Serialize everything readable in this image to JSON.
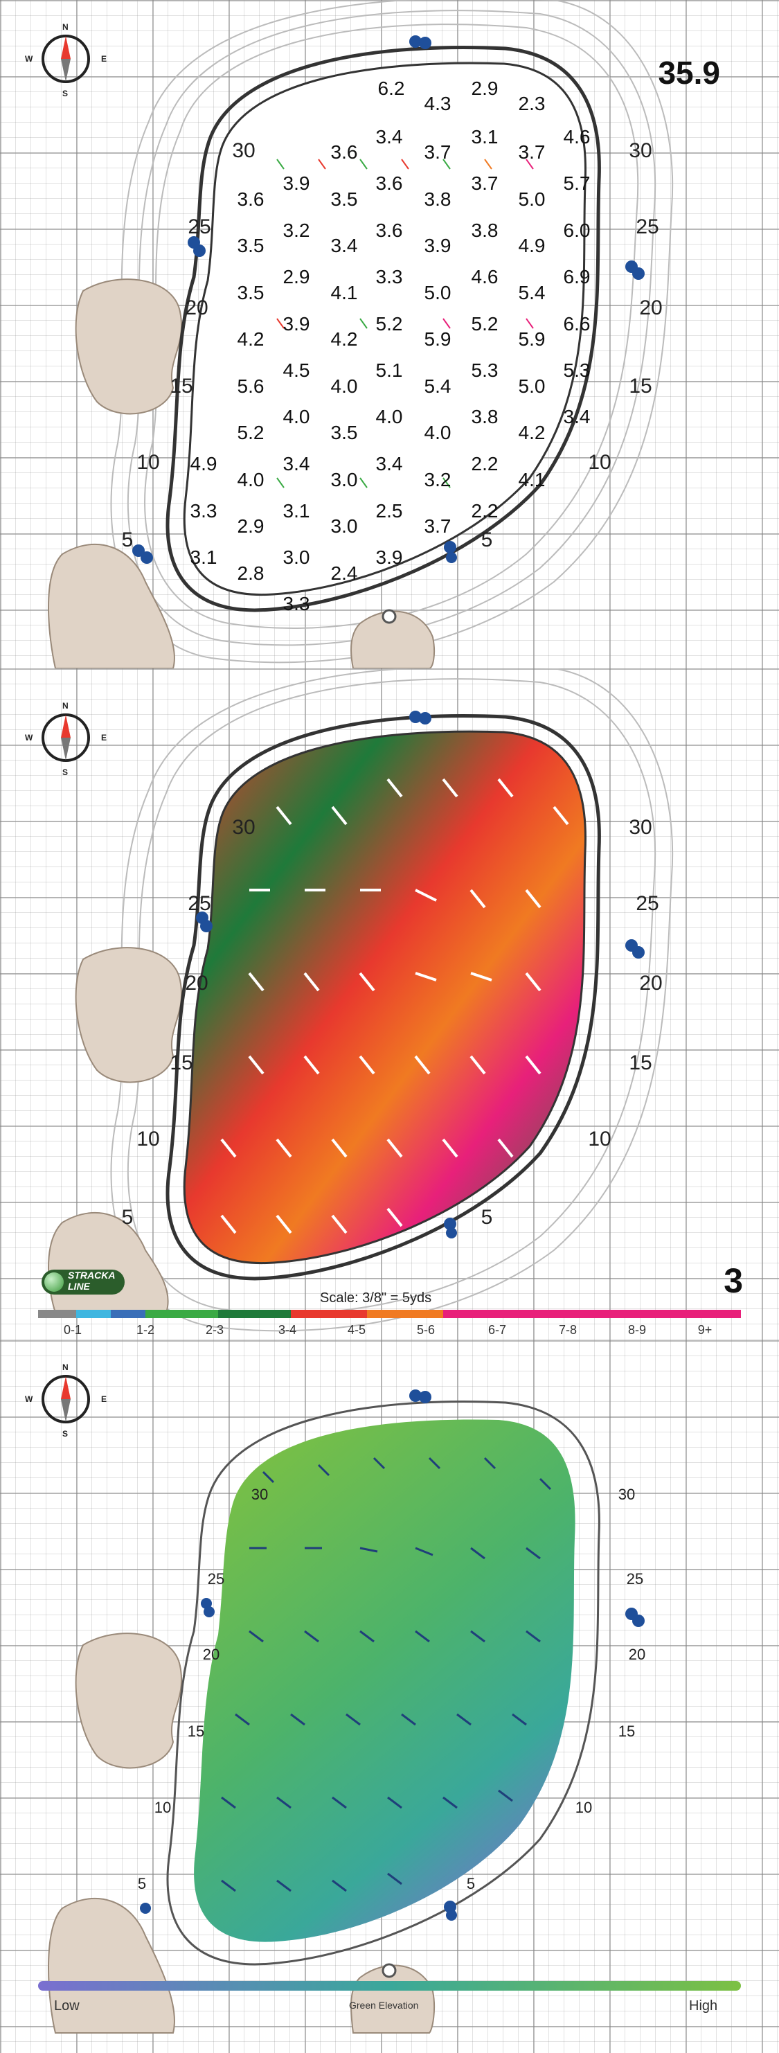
{
  "compass": {
    "n": "N",
    "s": "S",
    "e": "E",
    "w": "W",
    "icon": "compass-rose-icon"
  },
  "panel1": {
    "hole_value": "35.9",
    "distance_markers": [
      "30",
      "25",
      "20",
      "15",
      "10",
      "5"
    ],
    "distance_markers_right": [
      "30",
      "25",
      "20",
      "15",
      "10",
      "5"
    ],
    "slope_values": [
      [
        "6.2",
        "4.3",
        "2.9",
        "2.3"
      ],
      [
        "3.4",
        "3.1",
        "4.6"
      ],
      [
        "3.6",
        "3.7",
        "3.7"
      ],
      [
        "3.9",
        "3.6",
        "3.7",
        "5.7"
      ],
      [
        "3.6",
        "3.5",
        "3.8",
        "5.0"
      ],
      [
        "3.2",
        "3.6",
        "3.8",
        "6.0"
      ],
      [
        "3.5",
        "3.4",
        "3.9",
        "4.9"
      ],
      [
        "2.9",
        "3.3",
        "4.6",
        "6.9"
      ],
      [
        "3.5",
        "4.1",
        "5.0",
        "5.4"
      ],
      [
        "3.9",
        "5.2",
        "5.2",
        "6.6"
      ],
      [
        "4.2",
        "4.2",
        "5.9",
        "5.9"
      ],
      [
        "4.5",
        "5.1",
        "5.3",
        "5.3"
      ],
      [
        "5.6",
        "4.0",
        "5.4",
        "5.0"
      ],
      [
        "4.0",
        "4.0",
        "3.8",
        "3.4"
      ],
      [
        "5.2",
        "3.5",
        "4.0",
        "4.2"
      ],
      [
        "4.9",
        "3.4",
        "3.4",
        "2.2"
      ],
      [
        "4.0",
        "3.0",
        "3.2",
        "4.1"
      ],
      [
        "3.3",
        "3.1",
        "2.5",
        "2.2"
      ],
      [
        "2.9",
        "3.0",
        "3.7"
      ],
      [
        "3.1",
        "3.0",
        "3.9"
      ],
      [
        "2.8",
        "2.4"
      ],
      [
        "3.3"
      ]
    ]
  },
  "panel2": {
    "hole_number": "3",
    "scale_text": "Scale: 3/8\" = 5yds",
    "logo_text_1": "STRACKA",
    "logo_text_2": "LINE",
    "distance_markers": [
      "30",
      "25",
      "20",
      "15",
      "10",
      "5"
    ],
    "distance_markers_right": [
      "30",
      "25",
      "20",
      "15",
      "10",
      "5"
    ],
    "legend": [
      {
        "label": "0-1",
        "color": "#888888"
      },
      {
        "label": "1-2",
        "color": "#3fb6e0"
      },
      {
        "label": "2-3",
        "color": "#3aaa44"
      },
      {
        "label": "3-4",
        "color": "#1f7a3a"
      },
      {
        "label": "4-5",
        "color": "#e8392e"
      },
      {
        "label": "5-6",
        "color": "#f07a22"
      },
      {
        "label": "6-7",
        "color": "#e8207a"
      },
      {
        "label": "7-8",
        "color": "#e8207a"
      },
      {
        "label": "8-9",
        "color": "#e8207a"
      },
      {
        "label": "9+",
        "color": "#e8207a"
      }
    ]
  },
  "panel3": {
    "distance_markers": [
      "30",
      "25",
      "20",
      "15",
      "10",
      "5"
    ],
    "distance_markers_right": [
      "30",
      "25",
      "20",
      "15",
      "10",
      "5"
    ],
    "elevation_low": "Low",
    "elevation_mid": "Green Elevation",
    "elevation_high": "High"
  }
}
